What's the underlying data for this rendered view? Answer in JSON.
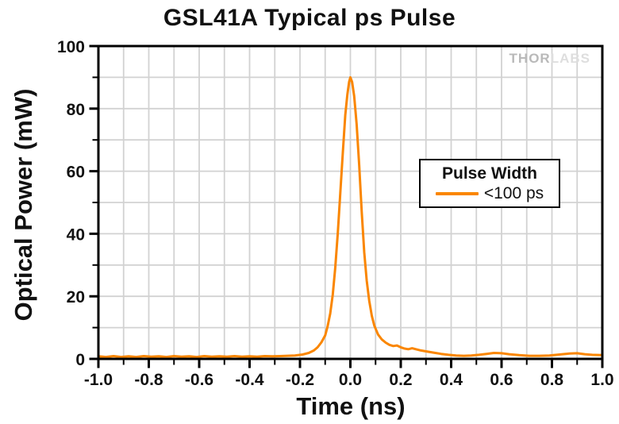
{
  "title": "GSL41A Typical ps Pulse",
  "axes": {
    "x_label": "Time (ns)",
    "y_label": "Optical Power (mW)"
  },
  "legend": {
    "title": "Pulse Width",
    "entry": "<100 ps"
  },
  "watermark": {
    "brand_left": "THOR",
    "brand_right": "LABS"
  },
  "colors": {
    "curve": "#FA8600",
    "grid": "#d2d2d2",
    "frame": "#000000",
    "text": "#111111",
    "watermark_thor": "#b9b9b9",
    "watermark_labs": "#dedede"
  },
  "chart_data": {
    "type": "line",
    "title": "GSL41A Typical ps Pulse",
    "xlabel": "Time (ns)",
    "ylabel": "Optical Power (mW)",
    "xlim": [
      -1.0,
      1.0
    ],
    "ylim": [
      0,
      100
    ],
    "x_major_ticks": [
      -1.0,
      -0.8,
      -0.6,
      -0.4,
      -0.2,
      0.0,
      0.2,
      0.4,
      0.6,
      0.8,
      1.0
    ],
    "x_tick_labels": [
      "-1.0",
      "-0.8",
      "-0.6",
      "-0.4",
      "-0.2",
      "0.0",
      "0.2",
      "0.4",
      "0.6",
      "0.8",
      "1.0"
    ],
    "x_minor_step": 0.1,
    "y_major_ticks": [
      0,
      20,
      40,
      60,
      80,
      100
    ],
    "y_tick_labels": [
      "0",
      "20",
      "40",
      "60",
      "80",
      "100"
    ],
    "y_minor_step": 10,
    "grid": "on: light-gray lines every 0.1 ns (x) and 10 mW (y), full frame box, ticks outside",
    "legend_position": "right-center inside plot",
    "annotations": {
      "peak_power_mW": 90,
      "peak_time_ns": 0.0,
      "fwhm_ps": "<100"
    },
    "series": [
      {
        "name": "<100 ps",
        "color": "#FA8600",
        "points": [
          [
            -1.0,
            0.8
          ],
          [
            -0.97,
            0.6
          ],
          [
            -0.94,
            0.9
          ],
          [
            -0.91,
            0.6
          ],
          [
            -0.88,
            0.8
          ],
          [
            -0.85,
            0.6
          ],
          [
            -0.82,
            0.9
          ],
          [
            -0.79,
            0.7
          ],
          [
            -0.76,
            0.8
          ],
          [
            -0.73,
            0.6
          ],
          [
            -0.7,
            0.9
          ],
          [
            -0.67,
            0.7
          ],
          [
            -0.64,
            0.8
          ],
          [
            -0.61,
            0.6
          ],
          [
            -0.58,
            0.9
          ],
          [
            -0.55,
            0.7
          ],
          [
            -0.52,
            0.8
          ],
          [
            -0.49,
            0.7
          ],
          [
            -0.46,
            0.9
          ],
          [
            -0.43,
            0.7
          ],
          [
            -0.4,
            0.8
          ],
          [
            -0.37,
            0.7
          ],
          [
            -0.34,
            0.9
          ],
          [
            -0.31,
            0.8
          ],
          [
            -0.28,
            0.9
          ],
          [
            -0.25,
            1.0
          ],
          [
            -0.22,
            1.1
          ],
          [
            -0.19,
            1.4
          ],
          [
            -0.165,
            1.9
          ],
          [
            -0.145,
            2.7
          ],
          [
            -0.13,
            3.7
          ],
          [
            -0.115,
            5.3
          ],
          [
            -0.1,
            7.5
          ],
          [
            -0.09,
            10.5
          ],
          [
            -0.08,
            14.5
          ],
          [
            -0.07,
            20.5
          ],
          [
            -0.06,
            29
          ],
          [
            -0.05,
            40
          ],
          [
            -0.04,
            53
          ],
          [
            -0.03,
            66
          ],
          [
            -0.02,
            78
          ],
          [
            -0.012,
            84.5
          ],
          [
            -0.005,
            88.5
          ],
          [
            0.0,
            90
          ],
          [
            0.007,
            88.5
          ],
          [
            0.015,
            84
          ],
          [
            0.025,
            75
          ],
          [
            0.035,
            62
          ],
          [
            0.045,
            47
          ],
          [
            0.055,
            34
          ],
          [
            0.065,
            25
          ],
          [
            0.075,
            18.5
          ],
          [
            0.085,
            13.8
          ],
          [
            0.095,
            10.6
          ],
          [
            0.11,
            7.8
          ],
          [
            0.125,
            6.2
          ],
          [
            0.14,
            5.2
          ],
          [
            0.155,
            4.5
          ],
          [
            0.17,
            4.1
          ],
          [
            0.185,
            4.3
          ],
          [
            0.2,
            3.7
          ],
          [
            0.215,
            3.3
          ],
          [
            0.23,
            3.1
          ],
          [
            0.245,
            3.4
          ],
          [
            0.26,
            3.1
          ],
          [
            0.28,
            2.7
          ],
          [
            0.3,
            2.4
          ],
          [
            0.33,
            2.0
          ],
          [
            0.36,
            1.6
          ],
          [
            0.39,
            1.3
          ],
          [
            0.42,
            1.1
          ],
          [
            0.45,
            1.0
          ],
          [
            0.48,
            1.1
          ],
          [
            0.51,
            1.3
          ],
          [
            0.54,
            1.6
          ],
          [
            0.57,
            1.9
          ],
          [
            0.6,
            1.8
          ],
          [
            0.63,
            1.5
          ],
          [
            0.67,
            1.2
          ],
          [
            0.71,
            1.0
          ],
          [
            0.75,
            1.0
          ],
          [
            0.79,
            1.1
          ],
          [
            0.83,
            1.4
          ],
          [
            0.87,
            1.7
          ],
          [
            0.9,
            1.8
          ],
          [
            0.93,
            1.5
          ],
          [
            0.96,
            1.3
          ],
          [
            1.0,
            1.2
          ]
        ]
      }
    ]
  }
}
